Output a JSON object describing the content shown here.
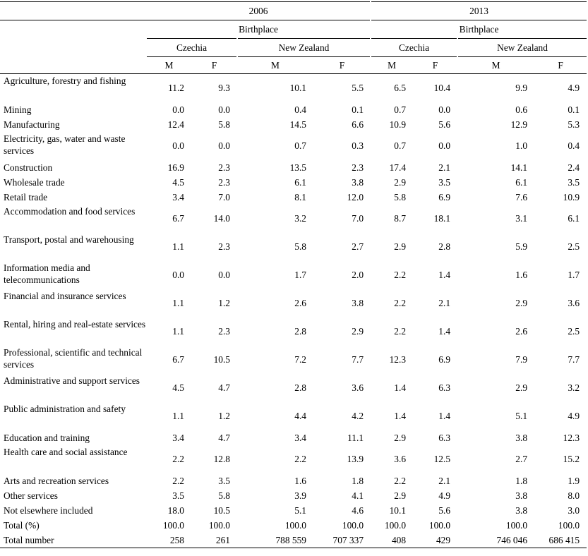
{
  "header": {
    "years": [
      "2006",
      "2013"
    ],
    "birthplace_label": "Birthplace",
    "countries": [
      "Czechia",
      "New Zealand",
      "Czechia",
      "New Zealand"
    ],
    "sexes": [
      "M",
      "F",
      "M",
      "F",
      "M",
      "F",
      "M",
      "F"
    ]
  },
  "rows": [
    {
      "label": "Agriculture, forestry and fishing",
      "values": [
        "11.2",
        "9.3",
        "10.1",
        "5.5",
        "6.5",
        "10.4",
        "9.9",
        "4.9"
      ]
    },
    {
      "label": "Mining",
      "values": [
        "0.0",
        "0.0",
        "0.4",
        "0.1",
        "0.7",
        "0.0",
        "0.6",
        "0.1"
      ]
    },
    {
      "label": "Manufacturing",
      "values": [
        "12.4",
        "5.8",
        "14.5",
        "6.6",
        "10.9",
        "5.6",
        "12.9",
        "5.3"
      ]
    },
    {
      "label": "Electricity, gas, water and waste services",
      "values": [
        "0.0",
        "0.0",
        "0.7",
        "0.3",
        "0.7",
        "0.0",
        "1.0",
        "0.4"
      ]
    },
    {
      "label": "Construction",
      "values": [
        "16.9",
        "2.3",
        "13.5",
        "2.3",
        "17.4",
        "2.1",
        "14.1",
        "2.4"
      ]
    },
    {
      "label": "Wholesale trade",
      "values": [
        "4.5",
        "2.3",
        "6.1",
        "3.8",
        "2.9",
        "3.5",
        "6.1",
        "3.5"
      ]
    },
    {
      "label": "Retail trade",
      "values": [
        "3.4",
        "7.0",
        "8.1",
        "12.0",
        "5.8",
        "6.9",
        "7.6",
        "10.9"
      ]
    },
    {
      "label": "Accommodation and food services",
      "values": [
        "6.7",
        "14.0",
        "3.2",
        "7.0",
        "8.7",
        "18.1",
        "3.1",
        "6.1"
      ]
    },
    {
      "label": "Transport, postal and warehousing",
      "values": [
        "1.1",
        "2.3",
        "5.8",
        "2.7",
        "2.9",
        "2.8",
        "5.9",
        "2.5"
      ]
    },
    {
      "label": "Information media and telecommunications",
      "values": [
        "0.0",
        "0.0",
        "1.7",
        "2.0",
        "2.2",
        "1.4",
        "1.6",
        "1.7"
      ]
    },
    {
      "label": "Financial and insurance services",
      "values": [
        "1.1",
        "1.2",
        "2.6",
        "3.8",
        "2.2",
        "2.1",
        "2.9",
        "3.6"
      ]
    },
    {
      "label": "Rental, hiring and real-estate services",
      "values": [
        "1.1",
        "2.3",
        "2.8",
        "2.9",
        "2.2",
        "1.4",
        "2.6",
        "2.5"
      ]
    },
    {
      "label": "Professional, scientific and technical services",
      "values": [
        "6.7",
        "10.5",
        "7.2",
        "7.7",
        "12.3",
        "6.9",
        "7.9",
        "7.7"
      ]
    },
    {
      "label": "Administrative and support services",
      "values": [
        "4.5",
        "4.7",
        "2.8",
        "3.6",
        "1.4",
        "6.3",
        "2.9",
        "3.2"
      ]
    },
    {
      "label": "Public administration and safety",
      "values": [
        "1.1",
        "1.2",
        "4.4",
        "4.2",
        "1.4",
        "1.4",
        "5.1",
        "4.9"
      ]
    },
    {
      "label": "Education and training",
      "values": [
        "3.4",
        "4.7",
        "3.4",
        "11.1",
        "2.9",
        "6.3",
        "3.8",
        "12.3"
      ]
    },
    {
      "label": "Health care and social assistance",
      "values": [
        "2.2",
        "12.8",
        "2.2",
        "13.9",
        "3.6",
        "12.5",
        "2.7",
        "15.2"
      ]
    },
    {
      "label": "Arts and recreation services",
      "values": [
        "2.2",
        "3.5",
        "1.6",
        "1.8",
        "2.2",
        "2.1",
        "1.8",
        "1.9"
      ]
    },
    {
      "label": "Other services",
      "values": [
        "3.5",
        "5.8",
        "3.9",
        "4.1",
        "2.9",
        "4.9",
        "3.8",
        "8.0"
      ]
    },
    {
      "label": "Not elsewhere included",
      "values": [
        "18.0",
        "10.5",
        "5.1",
        "4.6",
        "10.1",
        "5.6",
        "3.8",
        "3.0"
      ]
    },
    {
      "label": "Total (%)",
      "values": [
        "100.0",
        "100.0",
        "100.0",
        "100.0",
        "100.0",
        "100.0",
        "100.0",
        "100.0"
      ]
    },
    {
      "label": "Total number",
      "values": [
        "258",
        "261",
        "788 559",
        "707 337",
        "408",
        "429",
        "746 046",
        "686 415"
      ]
    }
  ]
}
